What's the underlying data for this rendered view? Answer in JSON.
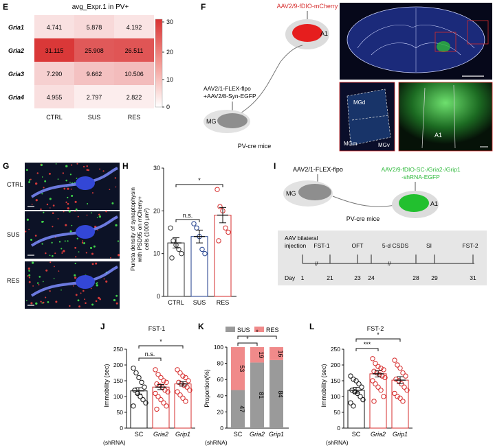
{
  "panels": {
    "E": {
      "letter": "E",
      "title": "avg_Expr.1 in PV+",
      "rows": [
        "Gria1",
        "Gria2",
        "Gria3",
        "Gria4"
      ],
      "cols": [
        "CTRL",
        "SUS",
        "RES"
      ],
      "values": [
        [
          "4.741",
          "5.878",
          "4.192"
        ],
        [
          "31.115",
          "25.908",
          "26.511"
        ],
        [
          "7.290",
          "9.662",
          "10.506"
        ],
        [
          "4.955",
          "2.797",
          "2.822"
        ]
      ],
      "colorbar_ticks": [
        "30",
        "20",
        "10",
        "0"
      ]
    },
    "F": {
      "letter": "F",
      "virus_a1": "AAV2/9-fDIO-mCherry",
      "a1": "A1",
      "virus_mg_1": "AAV2/1-FLEX-flpo",
      "virus_mg_2": "+AAV2/8-Syn-EGFP",
      "mg": "MG",
      "mouse": "PV-cre mice",
      "region_mgd": "MGd",
      "region_mgm": "MGm",
      "region_mgv": "MGv",
      "region_a1": "A1"
    },
    "G": {
      "letter": "G",
      "rows": [
        "CTRL",
        "SUS",
        "RES"
      ]
    },
    "H": {
      "letter": "H",
      "ylabel_1": "Puncta density of synaptophysin",
      "ylabel_2": "with PSD95 on mCherry+",
      "ylabel_3": "cells (1000 μm²)",
      "ns": "n.s.",
      "star": "*"
    },
    "I": {
      "letter": "I",
      "virus_mg": "AAV2/1-FLEX-flpo",
      "virus_a1_1": "AAV2/9-fDIO-SC-/Gria2-/Grip1",
      "virus_a1_2": "-shRNA-EGFP",
      "mg": "MG",
      "a1": "A1",
      "mouse": "PV-cre mice",
      "timeline_start_1": "AAV bilateral",
      "timeline_start_2": "injection",
      "steps": [
        "FST-1",
        "OFT",
        "5-d CSDS",
        "SI",
        "FST-2"
      ],
      "day_label": "Day",
      "days": [
        "1",
        "21",
        "23",
        "24",
        "28",
        "29",
        "31"
      ]
    },
    "J": {
      "letter": "J",
      "title": "FST-1",
      "ylabel": "Immobility (sec)",
      "ns": "n.s.",
      "star": "*",
      "shrna": "(shRNA)"
    },
    "K": {
      "letter": "K",
      "ylabel": "Proportion(%)",
      "legend_sus": "SUS",
      "legend_res": "RES",
      "star1": "*",
      "star2": "*",
      "shrna": "(shRNA)"
    },
    "L": {
      "letter": "L",
      "title": "FST-2",
      "ylabel": "Immobility (sec)",
      "star3": "***",
      "star": "*",
      "shrna": "(shRNA)"
    }
  },
  "colors": {
    "red": "#d62b2b",
    "gray": "#9a9a9a",
    "pink": "#f08a8a",
    "green": "#2db83a"
  },
  "chart_data": [
    {
      "type": "heatmap",
      "title": "avg_Expr.1 in PV+",
      "x": [
        "CTRL",
        "SUS",
        "RES"
      ],
      "y": [
        "Gria1",
        "Gria2",
        "Gria3",
        "Gria4"
      ],
      "values": [
        [
          4.741,
          5.878,
          4.192
        ],
        [
          31.115,
          25.908,
          26.511
        ],
        [
          7.29,
          9.662,
          10.506
        ],
        [
          4.955,
          2.797,
          2.822
        ]
      ],
      "colorbar_range": [
        0,
        32
      ]
    },
    {
      "type": "bar",
      "panel": "H",
      "categories": [
        "CTRL",
        "SUS",
        "RES"
      ],
      "values": [
        12.5,
        14,
        19
      ],
      "errors": [
        1.2,
        1.5,
        1.8
      ],
      "points": [
        [
          16,
          13,
          12,
          11,
          10,
          9
        ],
        [
          17,
          16,
          14,
          11,
          10
        ],
        [
          25,
          21,
          20,
          16,
          15,
          13
        ]
      ],
      "ylim": [
        0,
        30
      ],
      "yticks": [
        0,
        10,
        20,
        30
      ]
    },
    {
      "type": "bar",
      "panel": "J",
      "title": "FST-1",
      "categories": [
        "SC",
        "Gria2",
        "Grip1"
      ],
      "values": [
        118,
        130,
        140
      ],
      "errors": [
        10,
        8,
        7
      ],
      "points": [
        [
          190,
          175,
          160,
          145,
          130,
          120,
          110,
          100,
          90,
          80,
          70
        ],
        [
          185,
          170,
          160,
          150,
          145,
          140,
          135,
          130,
          120,
          115,
          110,
          100,
          90,
          80,
          70,
          60
        ],
        [
          185,
          175,
          165,
          160,
          150,
          145,
          140,
          135,
          130,
          120,
          115,
          105,
          95,
          85
        ]
      ],
      "ylim": [
        0,
        250
      ],
      "yticks": [
        0,
        50,
        100,
        150,
        200,
        250
      ]
    },
    {
      "type": "bar",
      "panel": "K",
      "stacked": true,
      "categories": [
        "SC",
        "Gria2",
        "Grip1"
      ],
      "series": [
        {
          "name": "SUS",
          "values": [
            47,
            81,
            84
          ]
        },
        {
          "name": "RES",
          "values": [
            53,
            19,
            16
          ]
        }
      ],
      "ylim": [
        0,
        100
      ],
      "yticks": [
        0,
        20,
        40,
        60,
        80,
        100
      ]
    },
    {
      "type": "bar",
      "panel": "L",
      "title": "FST-2",
      "categories": [
        "SC",
        "Gria2",
        "Grip1"
      ],
      "values": [
        120,
        172,
        152
      ],
      "errors": [
        9,
        10,
        11
      ],
      "points": [
        [
          165,
          155,
          150,
          140,
          130,
          120,
          115,
          110,
          100,
          90,
          80,
          70
        ],
        [
          220,
          205,
          195,
          190,
          185,
          180,
          175,
          170,
          165,
          160,
          150,
          140,
          130,
          120,
          100,
          85
        ],
        [
          215,
          200,
          190,
          175,
          165,
          155,
          150,
          140,
          130,
          120,
          110,
          100,
          95,
          85
        ]
      ],
      "ylim": [
        0,
        250
      ],
      "yticks": [
        0,
        50,
        100,
        150,
        200,
        250
      ]
    }
  ]
}
